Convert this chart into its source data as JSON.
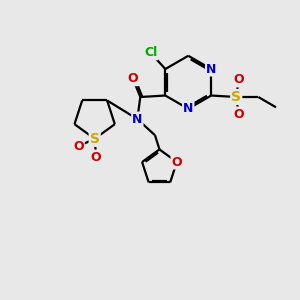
{
  "bg_color": "#e8e8e8",
  "bond_color": "#000000",
  "bond_width": 1.6,
  "atom_colors": {
    "C": "#000000",
    "N": "#0000cc",
    "O": "#cc0000",
    "S": "#ccaa00",
    "Cl": "#00aa00"
  },
  "font_size": 9,
  "fig_size": [
    3.0,
    3.0
  ],
  "dpi": 100,
  "xlim": [
    0,
    10
  ],
  "ylim": [
    0,
    10
  ]
}
